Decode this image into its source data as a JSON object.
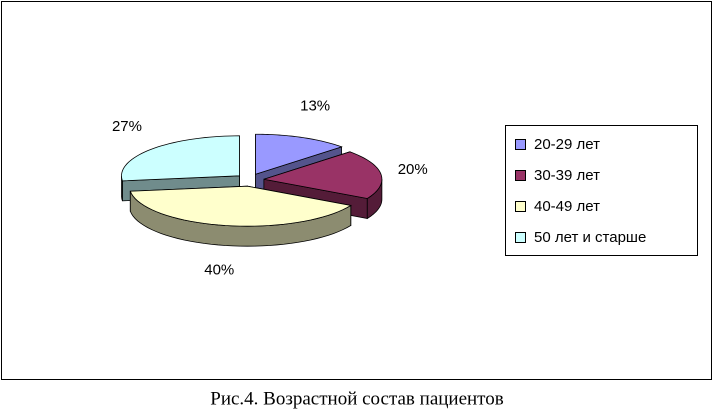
{
  "chart_data": {
    "type": "pie",
    "categories": [
      "20-29 лет",
      "30-39 лет",
      "40-49 лет",
      "50 лет и старше"
    ],
    "values": [
      13,
      20,
      40,
      27
    ],
    "value_labels": [
      "13%",
      "20%",
      "40%",
      "27%"
    ],
    "colors": [
      "#9999ff",
      "#993366",
      "#ffffcc",
      "#ccffff"
    ],
    "legend": "right",
    "caption": "Рис.4. Возрастной состав пациентов"
  }
}
